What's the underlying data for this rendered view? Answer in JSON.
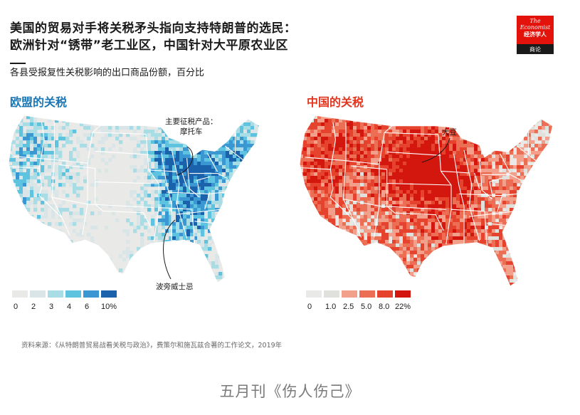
{
  "headline": {
    "line1": "美国的贸易对手将关税矛头指向支持特朗普的选民：",
    "line2": "欧洲针对“锈带”老工业区，中国针对大平原农业区"
  },
  "logo": {
    "line1": "The",
    "line2": "Economist",
    "line3": "经济学人",
    "sub": "商论",
    "bg_red": "#e3120b",
    "bg_dark": "#1a1a1a"
  },
  "subtitle": "各县受报复性关税影响的出口商品份额，百分比",
  "maps": {
    "eu": {
      "title": "欧盟的关税",
      "annotation_heading": "主要征税产品：",
      "annotation_product_1": "摩托车",
      "annotation_product_2": "波旁威士忌",
      "legend_labels": [
        "0",
        "2",
        "3",
        "4",
        "6",
        "10%"
      ],
      "legend_colors": [
        "#e9e9e7",
        "#d9e5e6",
        "#a8dde6",
        "#5ec3df",
        "#3a97d2",
        "#1a62ac"
      ],
      "title_color": "#1a76b5"
    },
    "cn": {
      "title": "中国的关税",
      "annotation_product_1": "大豆",
      "legend_labels": [
        "0",
        "1.0",
        "2.5",
        "5.0",
        "8.0",
        "22%"
      ],
      "legend_colors": [
        "#e9e9e7",
        "#e0e0dc",
        "#f2a08c",
        "#ec6f55",
        "#e6432e",
        "#d3170f"
      ],
      "title_color": "#e3341e"
    }
  },
  "source": "资料来源：《从特朗普贸易战看关税与政治》，费策尔和施瓦兹合著的工作论文，2019年",
  "caption": "五月刊《伤人伤己》"
}
